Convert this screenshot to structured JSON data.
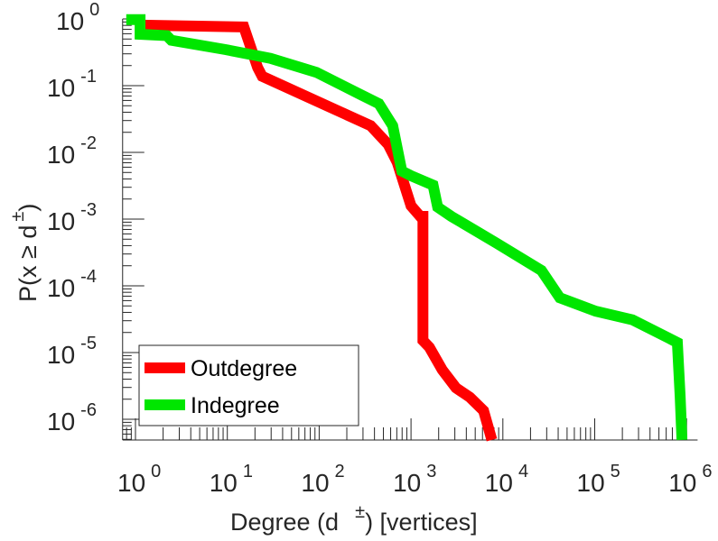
{
  "chart_data": {
    "type": "line",
    "scale": "log-log",
    "xlabel": "Degree (d ±) [vertices]",
    "xlabel_parts": {
      "main": "Degree (d",
      "sup": "±",
      "rest": ") [vertices]"
    },
    "ylabel": "P(x ≥ d±)",
    "ylabel_parts": {
      "main": "P(x ≥ d",
      "sup": "±",
      "rest": ")"
    },
    "x_log10_range": [
      -0.14,
      6.12
    ],
    "y_log10_range": [
      -6.31,
      0
    ],
    "x_ticks": [
      {
        "base": "10",
        "exp": "0"
      },
      {
        "base": "10",
        "exp": "1"
      },
      {
        "base": "10",
        "exp": "2"
      },
      {
        "base": "10",
        "exp": "3"
      },
      {
        "base": "10",
        "exp": "4"
      },
      {
        "base": "10",
        "exp": "5"
      },
      {
        "base": "10",
        "exp": "6"
      }
    ],
    "y_ticks": [
      {
        "base": "10",
        "exp": "0"
      },
      {
        "base": "10",
        "exp": "-1"
      },
      {
        "base": "10",
        "exp": "-2"
      },
      {
        "base": "10",
        "exp": "-3"
      },
      {
        "base": "10",
        "exp": "-4"
      },
      {
        "base": "10",
        "exp": "-5"
      },
      {
        "base": "10",
        "exp": "-6"
      }
    ],
    "legend": {
      "placement": "bottom-left"
    },
    "series": [
      {
        "name": "Outdegree",
        "color": "#ff0000",
        "log10_x": [
          0,
          1.18,
          1.33,
          1.38,
          2.56,
          2.75,
          2.85,
          3.0,
          3.1,
          3.13,
          3.13,
          3.2,
          3.34,
          3.49,
          3.64,
          3.79,
          3.88
        ],
        "log10_y": [
          -0.09,
          -0.12,
          -0.73,
          -0.86,
          -1.6,
          -1.88,
          -2.15,
          -2.8,
          -2.96,
          -2.96,
          -4.82,
          -4.92,
          -5.26,
          -5.53,
          -5.67,
          -5.87,
          -6.31
        ]
      },
      {
        "name": "Indegree",
        "color": "#00e600",
        "log10_x": [
          -0.1,
          0.05,
          0.05,
          0.34,
          0.39,
          0.98,
          1.47,
          1.97,
          2.46,
          2.65,
          2.8,
          2.9,
          3.0,
          3.24,
          3.29,
          3.44,
          3.93,
          4.42,
          4.62,
          5.01,
          5.41,
          5.8,
          5.9,
          5.93,
          5.95
        ],
        "log10_y": [
          -0.01,
          -0.01,
          -0.23,
          -0.25,
          -0.32,
          -0.46,
          -0.59,
          -0.8,
          -1.14,
          -1.27,
          -1.6,
          -2.28,
          -2.35,
          -2.49,
          -2.82,
          -2.96,
          -3.36,
          -3.77,
          -4.18,
          -4.38,
          -4.51,
          -4.78,
          -4.85,
          -5.66,
          -6.31
        ]
      }
    ]
  }
}
